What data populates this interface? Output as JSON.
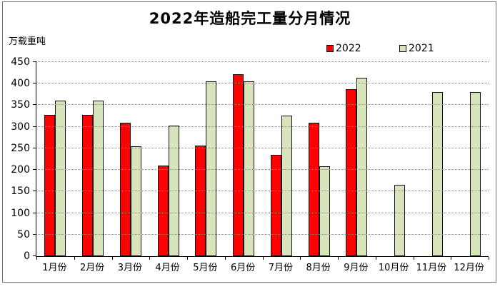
{
  "title": "2022年造船完工量分月情况",
  "unit_label": "万载重吨",
  "legend": [
    {
      "label": "2022",
      "color": "#ff0000"
    },
    {
      "label": "2021",
      "color": "#d8e4bc"
    }
  ],
  "colors": {
    "bar_2022": "#ff0000",
    "bar_2021": "#d8e4bc",
    "bar_border": "#111111",
    "gridline": "#868686",
    "axis": "#000000",
    "frame_border": "#6f6f6f",
    "background": "#ffffff"
  },
  "chart_data": {
    "type": "bar",
    "title": "2022年造船完工量分月情况",
    "ylabel": "万载重吨",
    "xlabel": "",
    "categories": [
      "1月份",
      "2月份",
      "3月份",
      "4月份",
      "5月份",
      "6月份",
      "7月份",
      "8月份",
      "9月份",
      "10月份",
      "11月份",
      "12月份"
    ],
    "series": [
      {
        "name": "2022",
        "color": "#ff0000",
        "values": [
          327,
          327,
          309,
          210,
          256,
          422,
          235,
          309,
          387,
          null,
          null,
          null
        ]
      },
      {
        "name": "2021",
        "color": "#d8e4bc",
        "values": [
          361,
          361,
          255,
          302,
          405,
          405,
          326,
          208,
          413,
          166,
          381,
          381
        ]
      }
    ],
    "ylim": [
      0,
      450
    ],
    "y_ticks": [
      0,
      50,
      100,
      150,
      200,
      250,
      300,
      350,
      400,
      450
    ],
    "grid": true,
    "gridline_style": "dotted",
    "legend_position": "top-right"
  }
}
